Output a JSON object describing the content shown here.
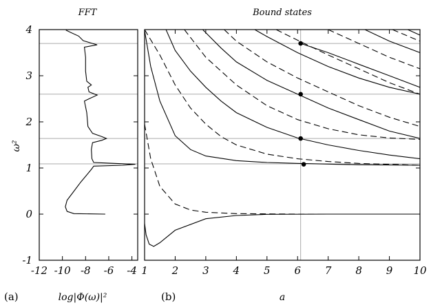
{
  "chart_data": [
    {
      "panel": "(a)",
      "type": "line",
      "title": "FFT",
      "xlabel": "log|Φ(ω)|²",
      "ylabel": "ω²",
      "xlim": [
        -12,
        -3.5
      ],
      "ylim": [
        -1,
        4
      ],
      "x_ticks": [
        "-12",
        "-10",
        "-8",
        "-6",
        "-4"
      ],
      "y_ticks": [
        "4",
        "3",
        "2",
        "1",
        "0",
        "-1"
      ],
      "y_tick_values": [
        4,
        3,
        2,
        1,
        0,
        -1
      ],
      "x_tick_values": [
        -12,
        -10,
        -8,
        -6,
        -4
      ],
      "reference_lines_y": [
        1.09,
        1.64,
        2.6,
        3.7
      ],
      "series": [
        {
          "style": "solid",
          "points": [
            [
              -6.3,
              0.0
            ],
            [
              -9.0,
              0.01
            ],
            [
              -9.6,
              0.06
            ],
            [
              -9.75,
              0.16
            ],
            [
              -9.6,
              0.3
            ],
            [
              -9.0,
              0.5
            ],
            [
              -8.4,
              0.7
            ],
            [
              -7.9,
              0.85
            ],
            [
              -7.5,
              0.97
            ],
            [
              -7.3,
              1.04
            ],
            [
              -4.8,
              1.06
            ],
            [
              -3.7,
              1.08
            ],
            [
              -7.3,
              1.12
            ],
            [
              -7.45,
              1.2
            ],
            [
              -7.5,
              1.4
            ],
            [
              -7.4,
              1.55
            ],
            [
              -6.6,
              1.6
            ],
            [
              -6.2,
              1.64
            ],
            [
              -6.6,
              1.68
            ],
            [
              -7.4,
              1.75
            ],
            [
              -7.8,
              1.9
            ],
            [
              -7.9,
              2.2
            ],
            [
              -8.1,
              2.45
            ],
            [
              -7.7,
              2.5
            ],
            [
              -7.0,
              2.58
            ],
            [
              -7.7,
              2.65
            ],
            [
              -7.8,
              2.75
            ],
            [
              -7.5,
              2.8
            ],
            [
              -7.9,
              2.88
            ],
            [
              -8.0,
              3.1
            ],
            [
              -8.0,
              3.4
            ],
            [
              -8.1,
              3.62
            ],
            [
              -7.0,
              3.67
            ],
            [
              -8.2,
              3.76
            ],
            [
              -8.6,
              3.86
            ],
            [
              -9.3,
              3.94
            ],
            [
              -9.7,
              3.99
            ]
          ]
        }
      ]
    },
    {
      "panel": "(b)",
      "type": "line",
      "title": "Bound states",
      "xlabel": "a",
      "ylabel": "",
      "xlim": [
        1,
        10
      ],
      "ylim": [
        -1,
        4
      ],
      "x_ticks": [
        "1",
        "2",
        "3",
        "4",
        "5",
        "6",
        "7",
        "8",
        "9",
        "10"
      ],
      "x_tick_values": [
        1,
        2,
        3,
        4,
        5,
        6,
        7,
        8,
        9,
        10
      ],
      "vertical_line_x": 6.1,
      "reference_lines_y": [
        1.09,
        1.64,
        2.6,
        3.7
      ],
      "markers": [
        [
          6.1,
          3.7
        ],
        [
          6.1,
          2.6
        ],
        [
          6.1,
          1.64
        ],
        [
          6.2,
          1.08
        ]
      ],
      "series": [
        {
          "style": "solid",
          "points": [
            [
              1.0,
              -0.2
            ],
            [
              1.05,
              -0.45
            ],
            [
              1.15,
              -0.65
            ],
            [
              1.3,
              -0.7
            ],
            [
              1.5,
              -0.62
            ],
            [
              2.0,
              -0.35
            ],
            [
              3.0,
              -0.1
            ],
            [
              4.0,
              -0.03
            ],
            [
              5.0,
              -0.005
            ],
            [
              7.0,
              0.0
            ],
            [
              10.0,
              0.0
            ]
          ]
        },
        {
          "style": "dashed",
          "points": [
            [
              1.0,
              1.95
            ],
            [
              1.2,
              1.2
            ],
            [
              1.5,
              0.6
            ],
            [
              2.0,
              0.22
            ],
            [
              2.5,
              0.09
            ],
            [
              3.0,
              0.04
            ],
            [
              4.0,
              0.01
            ],
            [
              6.0,
              0.0
            ],
            [
              10.0,
              0.0
            ]
          ]
        },
        {
          "style": "solid",
          "points": [
            [
              1.0,
              3.98
            ],
            [
              1.2,
              3.2
            ],
            [
              1.5,
              2.45
            ],
            [
              2.0,
              1.7
            ],
            [
              2.5,
              1.4
            ],
            [
              3.0,
              1.26
            ],
            [
              4.0,
              1.16
            ],
            [
              5.0,
              1.12
            ],
            [
              6.0,
              1.1
            ],
            [
              8.0,
              1.07
            ],
            [
              10.0,
              1.06
            ]
          ]
        },
        {
          "style": "dashed",
          "points": [
            [
              1.0,
              4.0
            ],
            [
              1.5,
              3.45
            ],
            [
              2.0,
              2.8
            ],
            [
              2.5,
              2.3
            ],
            [
              3.0,
              1.95
            ],
            [
              3.5,
              1.68
            ],
            [
              4.0,
              1.5
            ],
            [
              5.0,
              1.3
            ],
            [
              6.0,
              1.2
            ],
            [
              7.0,
              1.14
            ],
            [
              8.0,
              1.1
            ],
            [
              10.0,
              1.06
            ]
          ]
        },
        {
          "style": "solid",
          "points": [
            [
              1.7,
              4.0
            ],
            [
              2.0,
              3.55
            ],
            [
              2.5,
              3.1
            ],
            [
              3.0,
              2.75
            ],
            [
              3.5,
              2.45
            ],
            [
              4.0,
              2.2
            ],
            [
              5.0,
              1.88
            ],
            [
              6.0,
              1.65
            ],
            [
              7.0,
              1.5
            ],
            [
              8.0,
              1.38
            ],
            [
              9.0,
              1.28
            ],
            [
              10.0,
              1.2
            ]
          ]
        },
        {
          "style": "dashed",
          "points": [
            [
              2.3,
              4.0
            ],
            [
              3.0,
              3.4
            ],
            [
              4.0,
              2.8
            ],
            [
              5.0,
              2.35
            ],
            [
              6.0,
              2.05
            ],
            [
              7.0,
              1.85
            ],
            [
              8.0,
              1.72
            ],
            [
              9.0,
              1.65
            ],
            [
              10.0,
              1.62
            ]
          ]
        },
        {
          "style": "solid",
          "points": [
            [
              2.9,
              4.0
            ],
            [
              3.5,
              3.6
            ],
            [
              4.0,
              3.3
            ],
            [
              5.0,
              2.9
            ],
            [
              6.0,
              2.6
            ],
            [
              7.0,
              2.3
            ],
            [
              8.0,
              2.05
            ],
            [
              9.0,
              1.8
            ],
            [
              10.0,
              1.64
            ]
          ]
        },
        {
          "style": "dashed",
          "points": [
            [
              3.6,
              4.0
            ],
            [
              4.0,
              3.75
            ],
            [
              5.0,
              3.3
            ],
            [
              6.0,
              2.95
            ],
            [
              7.0,
              2.65
            ],
            [
              8.0,
              2.35
            ],
            [
              9.0,
              2.1
            ],
            [
              10.0,
              1.9
            ]
          ]
        },
        {
          "style": "solid",
          "points": [
            [
              4.6,
              4.0
            ],
            [
              5.0,
              3.85
            ],
            [
              6.0,
              3.5
            ],
            [
              7.0,
              3.2
            ],
            [
              8.0,
              2.95
            ],
            [
              9.0,
              2.75
            ],
            [
              10.0,
              2.6
            ]
          ]
        },
        {
          "style": "dashed",
          "points": [
            [
              5.3,
              4.0
            ],
            [
              6.0,
              3.77
            ],
            [
              7.0,
              3.45
            ],
            [
              8.0,
              3.15
            ],
            [
              9.0,
              2.85
            ],
            [
              10.0,
              2.6
            ]
          ]
        },
        {
          "style": "solid",
          "points": [
            [
              6.1,
              3.7
            ],
            [
              7.0,
              3.5
            ],
            [
              8.0,
              3.25
            ],
            [
              9.0,
              3.0
            ],
            [
              10.0,
              2.75
            ]
          ]
        },
        {
          "style": "dashed",
          "points": [
            [
              7.0,
              4.0
            ],
            [
              8.0,
              3.7
            ],
            [
              9.0,
              3.4
            ],
            [
              10.0,
              3.15
            ]
          ]
        },
        {
          "style": "solid",
          "points": [
            [
              8.2,
              4.0
            ],
            [
              9.0,
              3.75
            ],
            [
              10.0,
              3.5
            ]
          ]
        },
        {
          "style": "dashed",
          "points": [
            [
              9.1,
              4.0
            ],
            [
              10.0,
              3.75
            ]
          ]
        },
        {
          "style": "solid",
          "points": [
            [
              9.6,
              4.0
            ],
            [
              10.0,
              3.88
            ]
          ]
        }
      ]
    }
  ]
}
